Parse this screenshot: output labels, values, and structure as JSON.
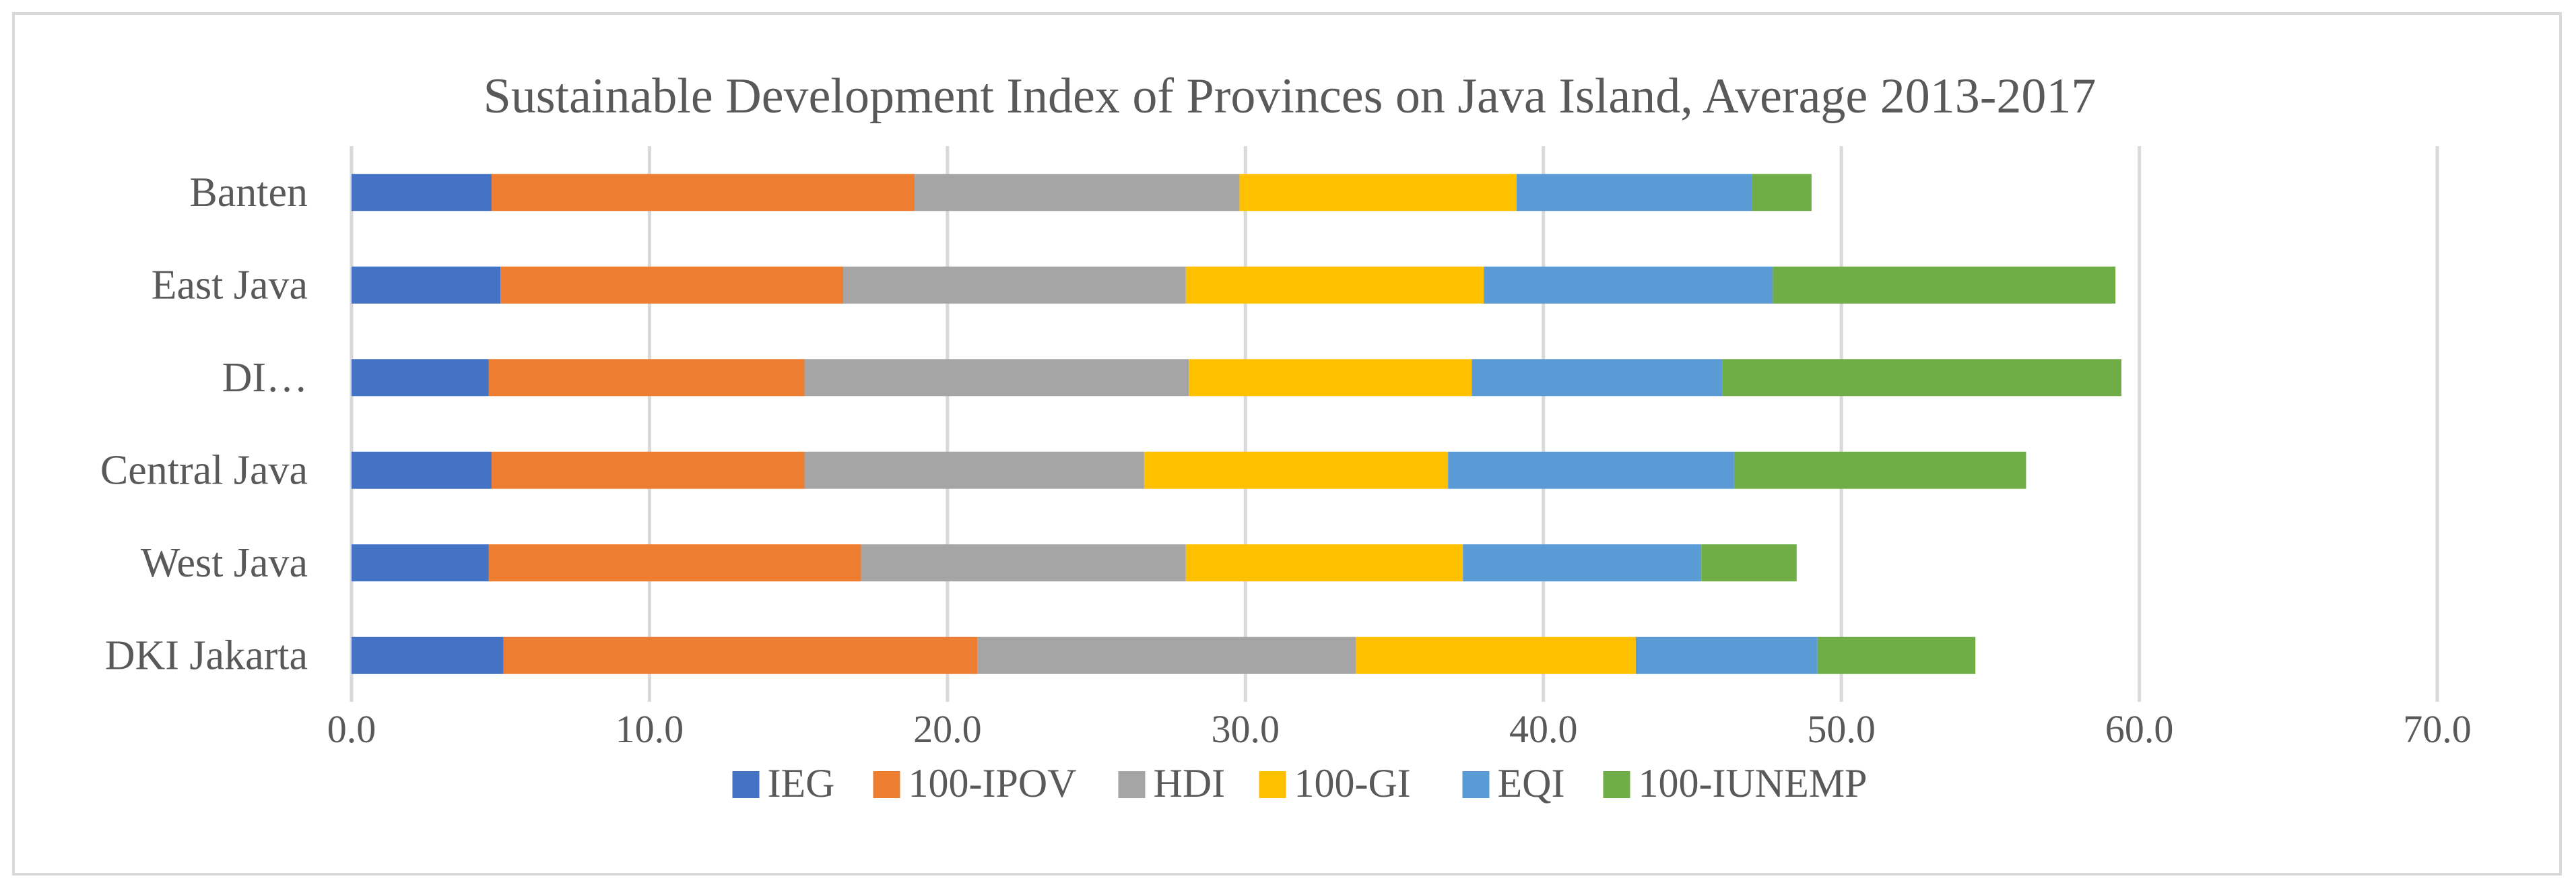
{
  "chart_data": {
    "type": "bar",
    "orientation": "horizontal",
    "stacked": true,
    "title": "Sustainable Development Index of Provinces on Java Island, Average 2013-2017",
    "xlabel": "",
    "ylabel": "",
    "xlim": [
      0,
      70
    ],
    "x_ticks": [
      0,
      10,
      20,
      30,
      40,
      50,
      60,
      70
    ],
    "x_tick_labels": [
      "0.0",
      "10.0",
      "20.0",
      "30.0",
      "40.0",
      "50.0",
      "60.0",
      "70.0"
    ],
    "grid": true,
    "legend_position": "bottom",
    "categories": [
      "DKI Jakarta",
      "West Java",
      "Central Java",
      "DI…",
      "East Java",
      "Banten"
    ],
    "series": [
      {
        "name": "IEG",
        "color": "#4472C4",
        "values": [
          5.1,
          4.6,
          4.7,
          4.6,
          5.0,
          4.7
        ]
      },
      {
        "name": "100-IPOV",
        "color": "#ED7D31",
        "values": [
          15.9,
          12.5,
          10.5,
          10.6,
          11.5,
          14.2
        ]
      },
      {
        "name": "HDI",
        "color": "#A5A5A5",
        "values": [
          12.7,
          10.9,
          11.4,
          12.9,
          11.5,
          10.9
        ]
      },
      {
        "name": "100-GI",
        "color": "#FFC000",
        "values": [
          9.4,
          9.3,
          10.2,
          9.5,
          10.0,
          9.3
        ]
      },
      {
        "name": "EQI",
        "color": "#5B9BD5",
        "values": [
          6.1,
          8.0,
          9.6,
          8.4,
          9.7,
          7.9
        ]
      },
      {
        "name": "100-IUNEMP",
        "color": "#70AD47",
        "values": [
          5.3,
          3.2,
          9.8,
          13.4,
          11.5,
          2.0
        ]
      }
    ]
  }
}
